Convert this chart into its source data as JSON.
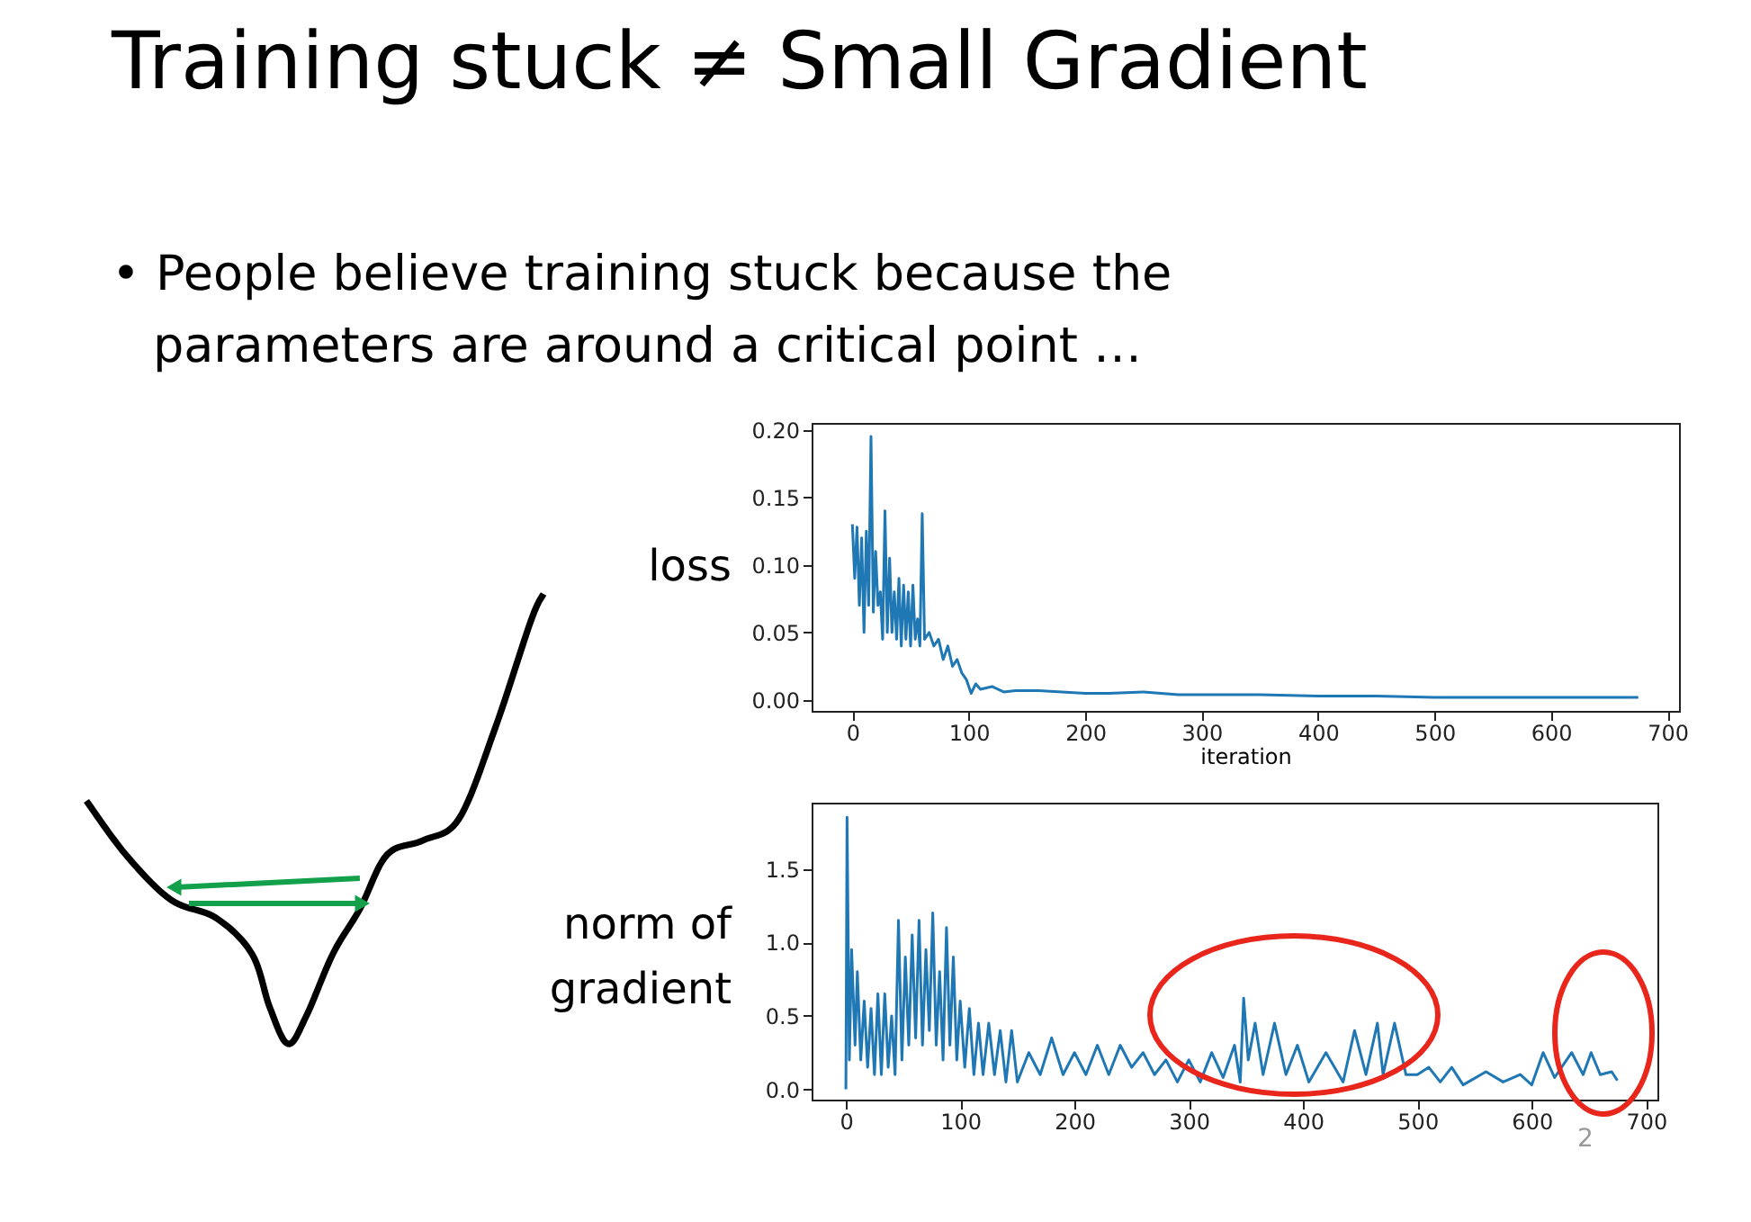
{
  "chart_data": [
    {
      "type": "line",
      "title": "Training stuck ≠ Small Gradient",
      "annotations": [
        "• People believe training stuck because the parameters are around a critical point …"
      ],
      "ylabel": "loss",
      "xlabel": "iteration",
      "grid": false,
      "x": [
        0,
        2,
        4,
        6,
        8,
        10,
        12,
        14,
        16,
        18,
        20,
        22,
        24,
        26,
        28,
        30,
        32,
        34,
        36,
        38,
        40,
        42,
        44,
        46,
        48,
        50,
        52,
        54,
        56,
        58,
        60,
        62,
        66,
        70,
        74,
        78,
        82,
        86,
        90,
        94,
        98,
        102,
        106,
        110,
        120,
        130,
        140,
        160,
        180,
        200,
        220,
        250,
        280,
        300,
        350,
        400,
        450,
        500,
        550,
        600,
        675
      ],
      "series": [
        {
          "color": "#1f77b4",
          "values": [
            0.13,
            0.09,
            0.128,
            0.07,
            0.12,
            0.05,
            0.125,
            0.07,
            0.195,
            0.065,
            0.11,
            0.07,
            0.08,
            0.045,
            0.14,
            0.05,
            0.105,
            0.05,
            0.08,
            0.045,
            0.09,
            0.04,
            0.085,
            0.045,
            0.08,
            0.04,
            0.085,
            0.045,
            0.06,
            0.04,
            0.138,
            0.045,
            0.05,
            0.04,
            0.045,
            0.03,
            0.04,
            0.025,
            0.03,
            0.02,
            0.015,
            0.005,
            0.012,
            0.008,
            0.01,
            0.006,
            0.007,
            0.007,
            0.006,
            0.005,
            0.005,
            0.006,
            0.004,
            0.004,
            0.004,
            0.003,
            0.003,
            0.002,
            0.002,
            0.002,
            0.002
          ]
        }
      ],
      "xlim": [
        -35,
        710
      ],
      "xticks": [
        0,
        100,
        200,
        300,
        400,
        500,
        600,
        700
      ],
      "ylim": [
        -0.008,
        0.205
      ],
      "yticks": [
        {
          "value": 0,
          "label": "0.00"
        },
        {
          "value": 0.05,
          "label": "0.05"
        },
        {
          "value": 0.1,
          "label": "0.10"
        },
        {
          "value": 0.15,
          "label": "0.15"
        },
        {
          "value": 0.2,
          "label": "0.20"
        }
      ]
    },
    {
      "type": "line",
      "ylabel": "norm of gradient",
      "annotations": [
        "2"
      ],
      "grid": false,
      "x": [
        0,
        1,
        3,
        5,
        8,
        10,
        13,
        16,
        19,
        22,
        25,
        28,
        31,
        34,
        37,
        40,
        43,
        46,
        49,
        52,
        55,
        58,
        61,
        64,
        67,
        70,
        73,
        76,
        79,
        82,
        85,
        88,
        91,
        94,
        97,
        100,
        104,
        108,
        112,
        116,
        120,
        125,
        130,
        135,
        140,
        145,
        150,
        160,
        170,
        180,
        190,
        200,
        210,
        220,
        230,
        240,
        250,
        260,
        270,
        280,
        290,
        300,
        310,
        320,
        330,
        340,
        345,
        348,
        352,
        358,
        365,
        375,
        385,
        395,
        405,
        420,
        435,
        445,
        455,
        465,
        470,
        480,
        490,
        500,
        510,
        520,
        530,
        540,
        560,
        575,
        590,
        600,
        610,
        620,
        635,
        645,
        652,
        660,
        670,
        675
      ],
      "series": [
        {
          "color": "#1f77b4",
          "values": [
            0.0,
            1.85,
            0.2,
            0.95,
            0.3,
            0.8,
            0.2,
            0.6,
            0.15,
            0.55,
            0.1,
            0.65,
            0.1,
            0.65,
            0.15,
            0.5,
            0.1,
            1.15,
            0.2,
            0.9,
            0.3,
            1.05,
            0.35,
            1.15,
            0.3,
            0.95,
            0.4,
            1.2,
            0.3,
            0.8,
            0.2,
            1.1,
            0.3,
            0.9,
            0.2,
            0.6,
            0.15,
            0.55,
            0.1,
            0.45,
            0.1,
            0.45,
            0.1,
            0.4,
            0.05,
            0.4,
            0.05,
            0.25,
            0.1,
            0.35,
            0.1,
            0.25,
            0.1,
            0.3,
            0.1,
            0.3,
            0.15,
            0.25,
            0.1,
            0.2,
            0.05,
            0.2,
            0.05,
            0.25,
            0.08,
            0.3,
            0.05,
            0.62,
            0.2,
            0.45,
            0.1,
            0.45,
            0.1,
            0.3,
            0.05,
            0.25,
            0.05,
            0.4,
            0.1,
            0.45,
            0.1,
            0.45,
            0.1,
            0.1,
            0.15,
            0.05,
            0.15,
            0.03,
            0.12,
            0.05,
            0.1,
            0.03,
            0.25,
            0.08,
            0.25,
            0.1,
            0.25,
            0.1,
            0.12,
            0.06
          ]
        }
      ],
      "xlim": [
        -30,
        710
      ],
      "xticks": [
        0,
        100,
        200,
        300,
        400,
        500,
        600,
        700
      ],
      "ylim": [
        -0.07,
        1.95
      ],
      "yticks": [
        {
          "value": 0,
          "label": "0.0"
        },
        {
          "value": 0.5,
          "label": "0.5"
        },
        {
          "value": 1.0,
          "label": "1.0"
        },
        {
          "value": 1.5,
          "label": "1.5"
        }
      ]
    }
  ]
}
